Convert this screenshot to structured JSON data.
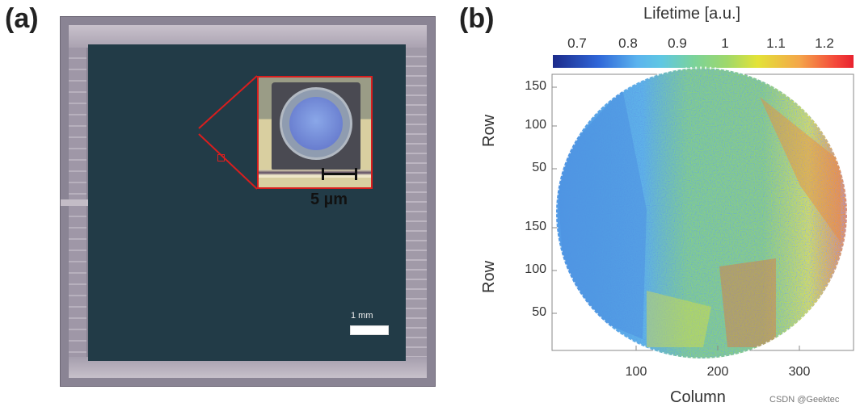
{
  "panels": {
    "a_label": "(a)",
    "b_label": "(b)"
  },
  "panel_a": {
    "inset_scale_label": "5 µm",
    "chip_scale_label": "1 mm"
  },
  "chart_data": {
    "type": "heatmap",
    "title": "",
    "colorbar": {
      "label": "Lifetime [a.u.]",
      "ticks": [
        0.7,
        0.8,
        0.9,
        1,
        1.1,
        1.2
      ],
      "tick_labels": [
        "0.7",
        "0.8",
        "0.9",
        "1",
        "1.1",
        "1.2"
      ],
      "range": [
        0.64,
        1.25
      ],
      "colormap": "jet"
    },
    "xlabel": "Column",
    "ylabel_upper": "Row",
    "ylabel_lower": "Row",
    "x_ticks": [
      "100",
      "200",
      "300"
    ],
    "y_ticks_upper": [
      "150",
      "100",
      "50"
    ],
    "y_ticks_lower": [
      "150",
      "100",
      "50"
    ],
    "description_regions": [
      {
        "region": "left",
        "lifetime": 0.82
      },
      {
        "region": "center",
        "lifetime": 0.95
      },
      {
        "region": "right-edge",
        "lifetime": 1.12
      }
    ]
  },
  "watermark": "CSDN @Geektec",
  "colors": {
    "chip_active": "#223b47",
    "callout": "#d81e1e",
    "axis": "#888888"
  }
}
